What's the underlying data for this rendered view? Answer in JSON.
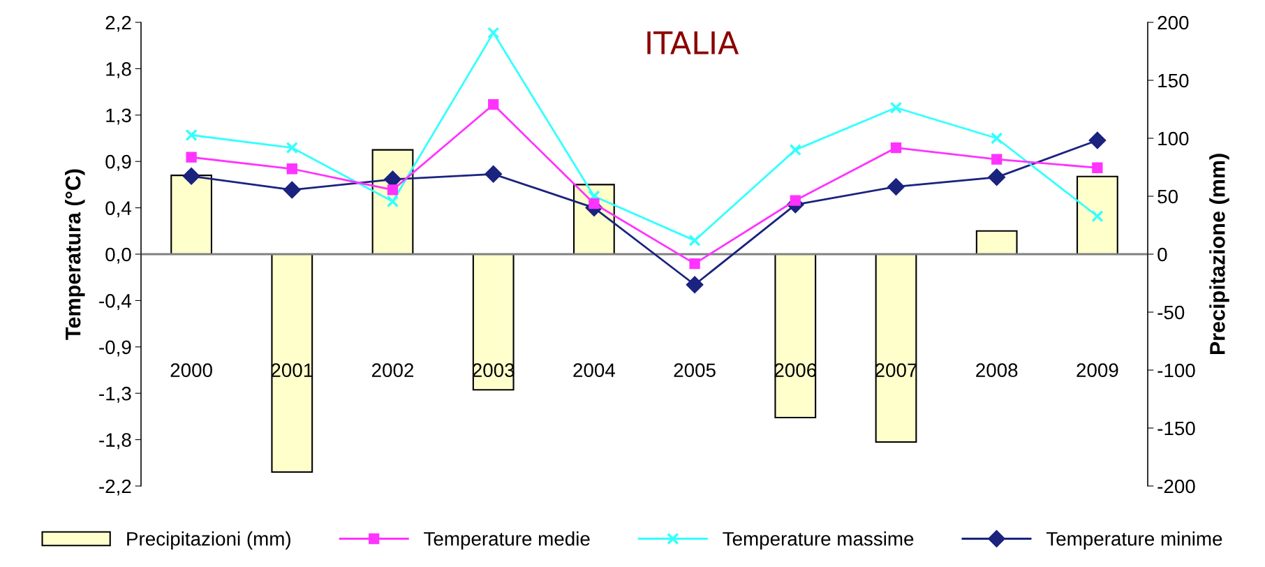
{
  "chart_data": {
    "type": "line",
    "title": "ITALIA",
    "ylabel": "Temperatura (°C)",
    "y2label": "Precipitazione (mm)",
    "categories": [
      "2000",
      "2001",
      "2002",
      "2003",
      "2004",
      "2005",
      "2006",
      "2007",
      "2008",
      "2009"
    ],
    "series": [
      {
        "name": "Precipitazioni (mm)",
        "type": "bar",
        "axis": "y2",
        "color": "#ffffcc",
        "values": [
          68,
          -188,
          90,
          -117,
          60,
          null,
          -141,
          -162,
          20,
          67
        ]
      },
      {
        "name": "Temperature medie",
        "color": "#ff33ff",
        "marker": "square",
        "values": [
          0.92,
          0.81,
          0.61,
          1.42,
          0.48,
          -0.09,
          0.51,
          1.01,
          0.9,
          0.82
        ]
      },
      {
        "name": "Temperature massime",
        "color": "#33ffff",
        "marker": "cross",
        "values": [
          1.13,
          1.01,
          0.5,
          2.1,
          0.55,
          0.13,
          0.99,
          1.39,
          1.1,
          0.36
        ]
      },
      {
        "name": "Temperature minime",
        "color": "#1a237e",
        "marker": "diamond",
        "values": [
          0.74,
          0.61,
          0.71,
          0.76,
          0.44,
          -0.29,
          0.47,
          0.64,
          0.73,
          1.08
        ]
      }
    ],
    "ylim": [
      -2.2,
      2.2
    ],
    "yticks": [
      {
        "value": -2.2,
        "label": "-2,2"
      },
      {
        "value": -1.76,
        "label": "-1,8"
      },
      {
        "value": -1.32,
        "label": "-1,3"
      },
      {
        "value": -0.88,
        "label": "-0,9"
      },
      {
        "value": -0.44,
        "label": "-0,4"
      },
      {
        "value": 0,
        "label": "0,0"
      },
      {
        "value": 0.44,
        "label": "0,4"
      },
      {
        "value": 0.88,
        "label": "0,9"
      },
      {
        "value": 1.32,
        "label": "1,3"
      },
      {
        "value": 1.76,
        "label": "1,8"
      },
      {
        "value": 2.2,
        "label": "2,2"
      }
    ],
    "y2lim": [
      -200,
      200
    ],
    "y2ticks": [
      -200,
      -150,
      -100,
      -50,
      0,
      50,
      100,
      150,
      200
    ],
    "ref_lines": [
      {
        "axis": "y",
        "value": 0,
        "color": "#808080"
      }
    ],
    "grid": false,
    "legend": "bottom"
  }
}
